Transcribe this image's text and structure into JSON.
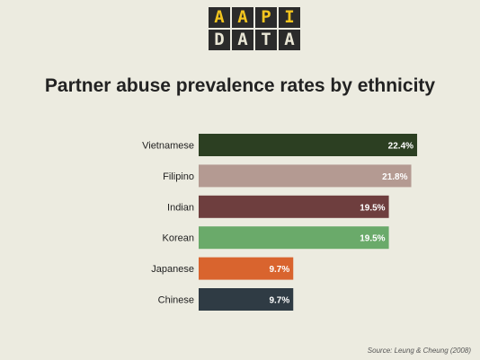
{
  "logo": {
    "top_letters": [
      "A",
      "A",
      "P",
      "I"
    ],
    "bottom_letters": [
      "D",
      "A",
      "T",
      "A"
    ]
  },
  "colors": {
    "background": "#ecebe0",
    "logo_tile": "#2b2b2b",
    "logo_top_text": "#f3c51f",
    "logo_bottom_text": "#e9e6d5"
  },
  "chart_data": {
    "type": "bar",
    "orientation": "horizontal",
    "title": "Partner abuse prevalence rates by ethnicity",
    "categories": [
      "Vietnamese",
      "Filipino",
      "Indian",
      "Korean",
      "Japanese",
      "Chinese"
    ],
    "values": [
      22.4,
      21.8,
      19.5,
      19.5,
      9.7,
      9.7
    ],
    "value_labels": [
      "22.4%",
      "21.8%",
      "19.5%",
      "19.5%",
      "9.7%",
      "9.7%"
    ],
    "bar_colors": [
      "#2c3f22",
      "#b49a92",
      "#6e3e3e",
      "#6aaa6a",
      "#d9642e",
      "#2f3b44"
    ],
    "unit": "%",
    "grid": false,
    "source": "Source: Leung & Cheung (2008)"
  }
}
